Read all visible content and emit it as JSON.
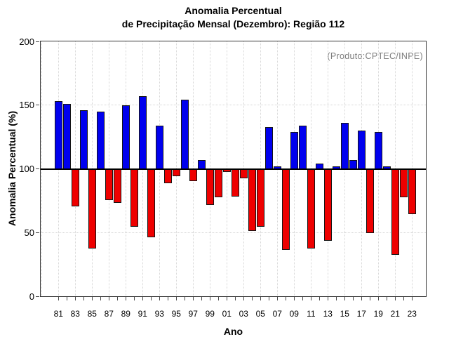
{
  "chart": {
    "title_line1": "Anomalia Percentual",
    "title_line2": "de Precipitação Mensal (Dezembro): Região 112",
    "annotation": "(Produto:CPTEC/INPE)",
    "xlabel": "Ano",
    "ylabel": "Anomalia Percentual (%)"
  },
  "chart_data": {
    "type": "bar",
    "title": "Anomalia Percentual de Precipitação Mensal (Dezembro): Região 112",
    "xlabel": "Ano",
    "ylabel": "Anomalia Percentual (%)",
    "annotation": "(Produto:CPTEC/INPE)",
    "ylim": [
      0,
      200
    ],
    "yticks": [
      0,
      50,
      100,
      150,
      200
    ],
    "baseline": 100,
    "grid": true,
    "legend": false,
    "bar_color_above": "#0000ee",
    "bar_color_below": "#ee0000",
    "years": [
      1981,
      1982,
      1983,
      1984,
      1985,
      1986,
      1987,
      1988,
      1989,
      1990,
      1991,
      1992,
      1993,
      1994,
      1995,
      1996,
      1997,
      1998,
      1999,
      2000,
      2001,
      2002,
      2003,
      2004,
      2005,
      2006,
      2007,
      2008,
      2009,
      2010,
      2011,
      2012,
      2013,
      2014,
      2015,
      2016,
      2017,
      2018,
      2019,
      2020,
      2021,
      2022,
      2023
    ],
    "values": [
      153,
      151,
      71,
      146,
      38,
      145,
      76,
      74,
      150,
      55,
      157,
      47,
      134,
      89,
      95,
      154,
      91,
      107,
      72,
      78,
      98,
      79,
      93,
      52,
      55,
      133,
      102,
      37,
      129,
      134,
      38,
      104,
      44,
      102,
      136,
      107,
      130,
      50,
      129,
      102,
      33,
      78,
      65
    ],
    "xtick_labels": [
      "81",
      "83",
      "85",
      "87",
      "89",
      "91",
      "93",
      "95",
      "97",
      "99",
      "01",
      "03",
      "05",
      "07",
      "09",
      "11",
      "13",
      "15",
      "17",
      "19",
      "21",
      "23"
    ]
  }
}
